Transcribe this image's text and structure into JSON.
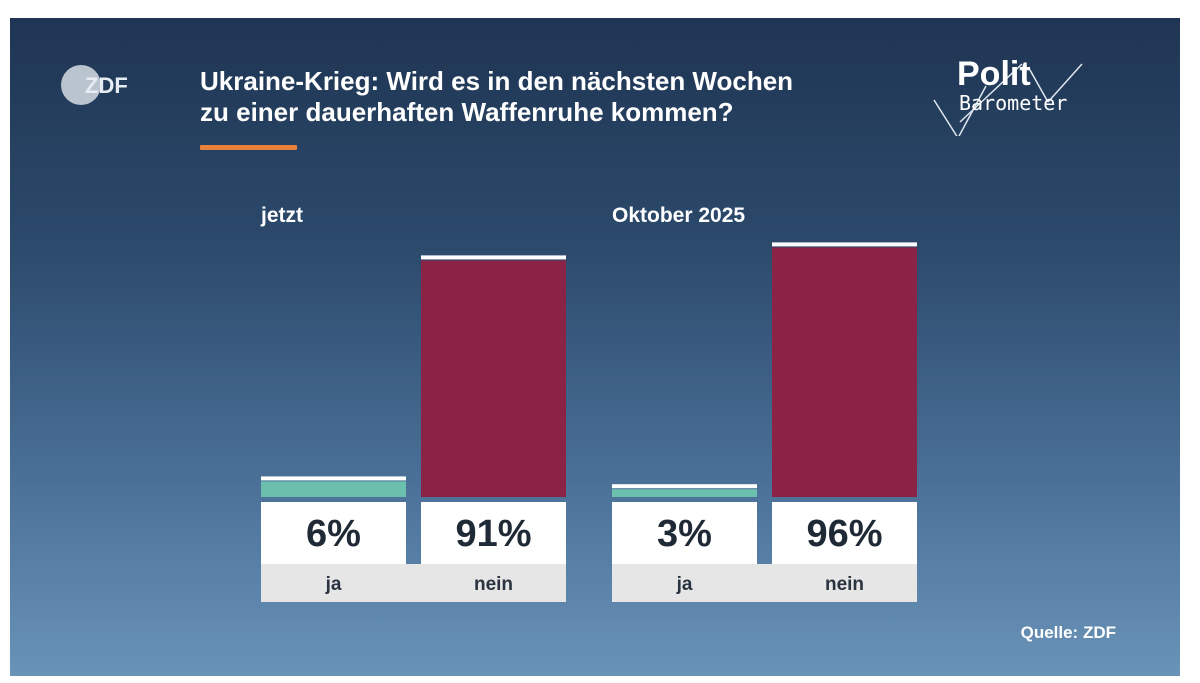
{
  "logos": {
    "broadcaster": "ZDF",
    "program_line1": "Polit",
    "program_line2": "Barometer"
  },
  "colors": {
    "ja": "#6cbfad",
    "nein": "#8b2346",
    "label_box": "#ffffff",
    "category_strip": "#e6e6e6",
    "accent": "#e8813a"
  },
  "chart_data": {
    "type": "bar",
    "title": "Ukraine-Krieg: Wird es in den nächsten Wochen zu einer dauerhaften Waffenruhe kommen?",
    "title_lines": [
      "Ukraine-Krieg: Wird es in den nächsten Wochen",
      "zu einer dauerhaften Waffenruhe kommen?"
    ],
    "unit": "%",
    "ylim": [
      0,
      100
    ],
    "groups": [
      {
        "label": "jetzt",
        "bars": [
          {
            "category": "ja",
            "value": 6,
            "value_label": "6%"
          },
          {
            "category": "nein",
            "value": 91,
            "value_label": "91%"
          }
        ]
      },
      {
        "label": "Oktober 2025",
        "bars": [
          {
            "category": "ja",
            "value": 3,
            "value_label": "3%"
          },
          {
            "category": "nein",
            "value": 96,
            "value_label": "96%"
          }
        ]
      }
    ],
    "source": "Quelle: ZDF"
  }
}
